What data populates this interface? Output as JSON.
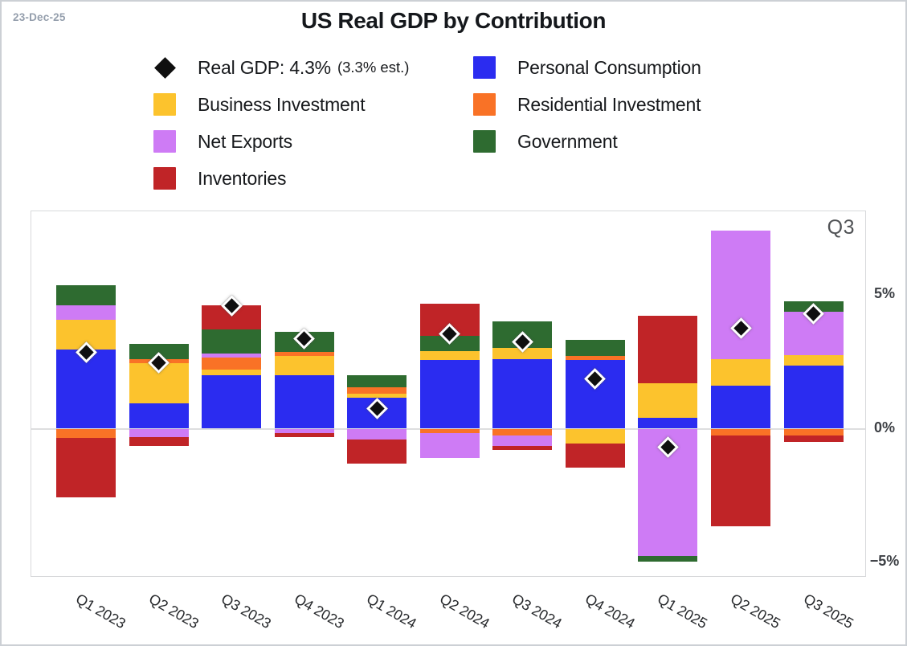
{
  "page": {
    "date_label": "23-Dec-25",
    "title": "US Real GDP by Contribution"
  },
  "legend": {
    "items": [
      {
        "key": "real_gdp",
        "marker": "diamond",
        "color": "#0f0f0f",
        "label": "Real GDP: 4.3%",
        "sublabel": "(3.3% est.)"
      },
      {
        "key": "personal_consumption",
        "marker": "square",
        "color": "#2b2cf0",
        "label": "Personal Consumption"
      },
      {
        "key": "business_investment",
        "marker": "square",
        "color": "#fcc32d",
        "label": "Business Investment"
      },
      {
        "key": "residential_investment",
        "marker": "square",
        "color": "#f97226",
        "label": "Residential Investment"
      },
      {
        "key": "net_exports",
        "marker": "square",
        "color": "#ce7bf5",
        "label": "Net Exports"
      },
      {
        "key": "government",
        "marker": "square",
        "color": "#2e6b30",
        "label": "Government"
      },
      {
        "key": "inventories",
        "marker": "square",
        "color": "#c02427",
        "label": "Inventories"
      }
    ]
  },
  "chart_data": {
    "type": "bar",
    "variant": "stacked-contribution-bars-with-diamond-markers",
    "title": "US Real GDP by Contribution",
    "annotation": "Q3",
    "unit": "percentage points, quarterly annualized",
    "categories": [
      "Q1 2023",
      "Q2 2023",
      "Q3 2023",
      "Q4 2023",
      "Q1 2024",
      "Q2 2024",
      "Q3 2024",
      "Q4 2024",
      "Q1 2025",
      "Q2 2025",
      "Q3 2025"
    ],
    "series": [
      {
        "key": "personal_consumption",
        "name": "Personal Consumption",
        "color": "#2b2cf0",
        "values": [
          2.95,
          0.95,
          2.0,
          2.0,
          1.15,
          2.55,
          2.6,
          2.55,
          0.4,
          1.6,
          2.35
        ]
      },
      {
        "key": "business_investment",
        "name": "Business Investment",
        "color": "#fcc32d",
        "values": [
          1.1,
          1.5,
          0.2,
          0.7,
          0.15,
          0.35,
          0.4,
          -0.55,
          1.3,
          1.0,
          0.4
        ]
      },
      {
        "key": "residential_investment",
        "name": "Residential Investment",
        "color": "#f97226",
        "values": [
          -0.35,
          0.15,
          0.45,
          0.15,
          0.25,
          -0.15,
          -0.25,
          0.15,
          0.0,
          -0.25,
          -0.25
        ]
      },
      {
        "key": "net_exports",
        "name": "Net Exports",
        "color": "#ce7bf5",
        "values": [
          0.55,
          -0.3,
          0.15,
          -0.15,
          -0.4,
          -0.95,
          -0.4,
          0.0,
          -4.75,
          4.8,
          1.6
        ]
      },
      {
        "key": "government",
        "name": "Government",
        "color": "#2e6b30",
        "values": [
          0.75,
          0.55,
          0.9,
          0.75,
          0.45,
          0.55,
          1.0,
          0.6,
          -0.2,
          0.0,
          0.4
        ]
      },
      {
        "key": "inventories",
        "name": "Inventories",
        "color": "#c02427",
        "values": [
          -2.2,
          -0.35,
          0.9,
          -0.15,
          -0.9,
          1.2,
          -0.15,
          -0.9,
          2.5,
          -3.4,
          -0.25
        ]
      }
    ],
    "markers": {
      "name": "Real GDP",
      "latest_value": "4.3%",
      "estimate_note": "3.3% est.",
      "color": "#0f0f0f",
      "values": [
        2.85,
        2.45,
        4.6,
        3.35,
        0.75,
        3.55,
        3.25,
        1.85,
        -0.7,
        3.75,
        4.3
      ]
    },
    "stack_order": {
      "positive": [
        "personal_consumption",
        "business_investment",
        "residential_investment",
        "net_exports",
        "government",
        "inventories"
      ],
      "negative": [
        "personal_consumption",
        "residential_investment",
        "business_investment",
        "net_exports",
        "government",
        "inventories"
      ]
    },
    "y_axis": {
      "ticks": [
        {
          "label": "5%",
          "value": 5
        },
        {
          "label": "0%",
          "value": 0
        },
        {
          "label": "−5%",
          "value": -5
        }
      ],
      "range": [
        -5.6,
        8.1
      ],
      "gridline_values": [
        0
      ],
      "legend_position": "top-center"
    }
  }
}
